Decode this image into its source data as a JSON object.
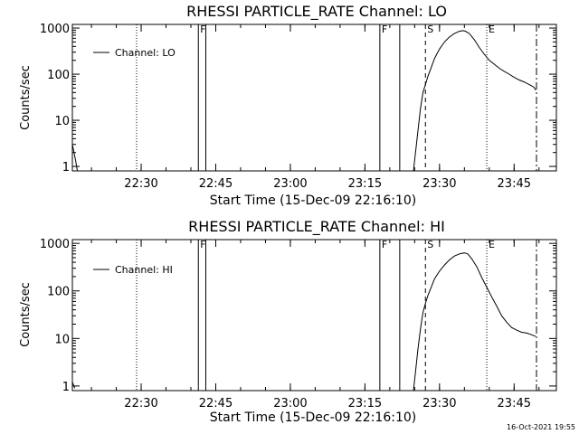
{
  "footer": {
    "timestamp": "16-Oct-2021 19:55"
  },
  "chart_data": [
    {
      "type": "line",
      "title": "RHESSI PARTICLE_RATE Channel: LO",
      "xlabel": "Start Time (15-Dec-09 22:16:10)",
      "ylabel": "Counts/sec",
      "y_scale": "log",
      "ylim": [
        0.8,
        1200
      ],
      "xlim": [
        "22:16:10",
        "23:53:30"
      ],
      "x_ticks": [
        "22:30",
        "22:45",
        "23:00",
        "23:15",
        "23:30",
        "23:45"
      ],
      "y_ticks": [
        "1",
        "10",
        "100",
        "1000"
      ],
      "legend": {
        "placement": "top-left",
        "entries": [
          "Channel: LO"
        ]
      },
      "markers": [
        {
          "label": "",
          "time": "22:29:05",
          "style": "dotted"
        },
        {
          "label": "F",
          "time": "22:41:30",
          "style": "solid"
        },
        {
          "label": "",
          "time": "22:43:00",
          "style": "solid"
        },
        {
          "label": "F",
          "time": "23:18:00",
          "style": "solid"
        },
        {
          "label": "",
          "time": "23:22:00",
          "style": "solid"
        },
        {
          "label": "S",
          "time": "23:27:10",
          "style": "dashed"
        },
        {
          "label": "E",
          "time": "23:39:30",
          "style": "dotted"
        },
        {
          "label": "",
          "time": "23:49:30",
          "style": "dashdot"
        }
      ],
      "series": [
        {
          "name": "Channel: LO",
          "segments": [
            {
              "x": [
                "22:16:10",
                "22:16:30",
                "22:16:50",
                "22:17:10"
              ],
              "y": [
                3.0,
                2.0,
                1.3,
                0.8
              ]
            },
            {
              "x": [
                "23:24:45",
                "23:25:10",
                "23:25:40",
                "23:26:10",
                "23:26:40",
                "23:27:10",
                "23:27:40",
                "23:28:20",
                "23:29:00",
                "23:30:00",
                "23:31:00",
                "23:32:00",
                "23:33:00",
                "23:34:00",
                "23:34:40",
                "23:35:10",
                "23:36:00",
                "23:37:00",
                "23:38:00",
                "23:39:00",
                "23:40:00",
                "23:41:00",
                "23:42:00",
                "23:43:00",
                "23:44:00",
                "23:45:00",
                "23:46:00",
                "23:47:00",
                "23:48:00",
                "23:49:00",
                "23:49:20"
              ],
              "y": [
                0.8,
                2,
                6,
                18,
                40,
                60,
                90,
                140,
                220,
                350,
                500,
                640,
                760,
                850,
                880,
                860,
                760,
                560,
                380,
                270,
                200,
                165,
                135,
                115,
                100,
                85,
                75,
                68,
                60,
                52,
                45
              ]
            }
          ]
        }
      ]
    },
    {
      "type": "line",
      "title": "RHESSI PARTICLE_RATE Channel: HI",
      "xlabel": "Start Time (15-Dec-09 22:16:10)",
      "ylabel": "Counts/sec",
      "y_scale": "log",
      "ylim": [
        0.8,
        1200
      ],
      "xlim": [
        "22:16:10",
        "23:53:30"
      ],
      "x_ticks": [
        "22:30",
        "22:45",
        "23:00",
        "23:15",
        "23:30",
        "23:45"
      ],
      "y_ticks": [
        "1",
        "10",
        "100",
        "1000"
      ],
      "legend": {
        "placement": "top-left",
        "entries": [
          "Channel: HI"
        ]
      },
      "markers": [
        {
          "label": "",
          "time": "22:29:05",
          "style": "dotted"
        },
        {
          "label": "F",
          "time": "22:41:30",
          "style": "solid"
        },
        {
          "label": "",
          "time": "22:43:00",
          "style": "solid"
        },
        {
          "label": "F",
          "time": "23:18:00",
          "style": "solid"
        },
        {
          "label": "",
          "time": "23:22:00",
          "style": "solid"
        },
        {
          "label": "S",
          "time": "23:27:10",
          "style": "dashed"
        },
        {
          "label": "E",
          "time": "23:39:30",
          "style": "dotted"
        },
        {
          "label": "",
          "time": "23:49:30",
          "style": "dashdot"
        }
      ],
      "series": [
        {
          "name": "Channel: HI",
          "segments": [
            {
              "x": [
                "22:16:10",
                "22:16:40"
              ],
              "y": [
                1.2,
                0.9
              ]
            },
            {
              "x": [
                "23:24:45",
                "23:25:10",
                "23:25:40",
                "23:26:10",
                "23:26:40",
                "23:27:10",
                "23:27:40",
                "23:28:20",
                "23:29:00",
                "23:30:00",
                "23:31:00",
                "23:32:00",
                "23:33:00",
                "23:34:00",
                "23:35:00",
                "23:35:40",
                "23:36:30",
                "23:37:30",
                "23:38:30",
                "23:39:30",
                "23:40:30",
                "23:41:30",
                "23:42:30",
                "23:43:30",
                "23:44:30",
                "23:45:30",
                "23:46:30",
                "23:47:30",
                "23:48:30",
                "23:49:20"
              ],
              "y": [
                0.8,
                2,
                6,
                16,
                35,
                55,
                80,
                120,
                180,
                260,
                350,
                450,
                540,
                600,
                630,
                600,
                470,
                320,
                190,
                120,
                75,
                48,
                30,
                22,
                17,
                15,
                13.5,
                13,
                12,
                11
              ]
            }
          ]
        }
      ]
    }
  ]
}
